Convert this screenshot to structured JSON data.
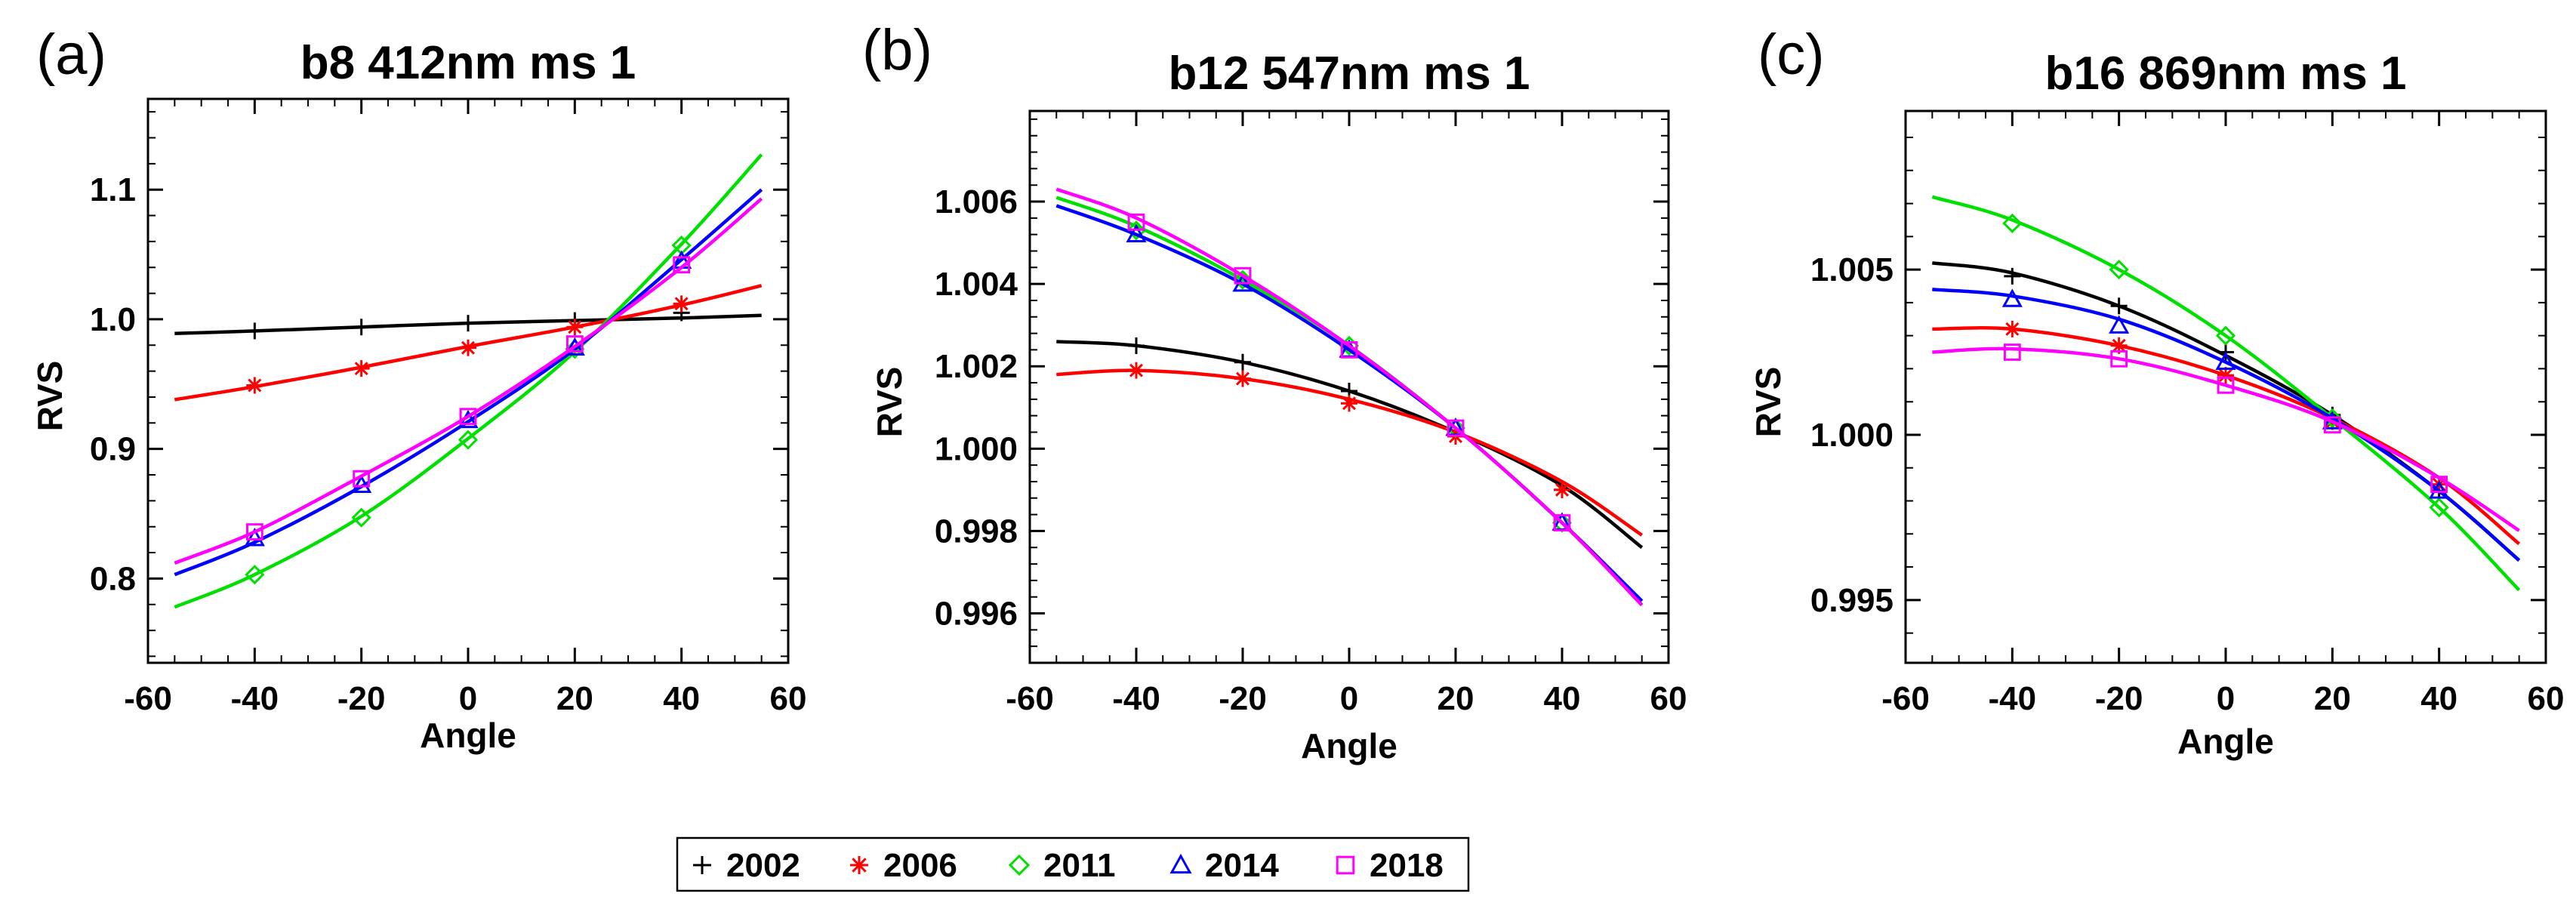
{
  "figure": {
    "legend": [
      {
        "name": "2002",
        "marker": "plus",
        "color": "#000000"
      },
      {
        "name": "2006",
        "marker": "asterisk",
        "color": "#ff0000"
      },
      {
        "name": "2011",
        "marker": "diamond",
        "color": "#00e000"
      },
      {
        "name": "2014",
        "marker": "triangle",
        "color": "#0000ff"
      },
      {
        "name": "2018",
        "marker": "square",
        "color": "#ff00ff"
      }
    ]
  },
  "chart_data": [
    {
      "type": "line",
      "panel_label": "(a)",
      "title": "b8  412nm ms 1",
      "xlabel": "Angle",
      "ylabel": "RVS",
      "xlim": [
        -60,
        60
      ],
      "ylim": [
        0.735,
        1.17
      ],
      "xticks": [
        -60,
        -40,
        -20,
        0,
        20,
        40,
        60
      ],
      "xtick_labels": [
        "-60",
        "-40",
        "-20",
        "0",
        "20",
        "40",
        "60"
      ],
      "yticks": [
        0.8,
        0.9,
        1.0,
        1.1
      ],
      "ytick_labels": [
        "0.8",
        "0.9",
        "1.0",
        "1.1"
      ],
      "curve_x": [
        -55,
        -40,
        -20,
        0,
        20,
        40,
        55
      ],
      "marker_x": [
        -40,
        -20,
        0,
        20,
        40
      ],
      "series": [
        {
          "name": "2002",
          "curve_y": [
            0.989,
            0.991,
            0.994,
            0.997,
            0.999,
            1.001,
            1.003
          ],
          "marker_y": [
            0.991,
            0.994,
            0.997,
            0.999,
            1.005
          ]
        },
        {
          "name": "2006",
          "curve_y": [
            0.938,
            0.948,
            0.963,
            0.979,
            0.994,
            1.011,
            1.026
          ],
          "marker_y": [
            0.949,
            0.962,
            0.978,
            0.994,
            1.012
          ]
        },
        {
          "name": "2011",
          "curve_y": [
            0.778,
            0.803,
            0.848,
            0.908,
            0.975,
            1.058,
            1.127
          ],
          "marker_y": [
            0.803,
            0.847,
            0.907,
            0.977,
            1.057
          ]
        },
        {
          "name": "2014",
          "curve_y": [
            0.803,
            0.828,
            0.871,
            0.921,
            0.977,
            1.046,
            1.1
          ],
          "marker_y": [
            0.831,
            0.872,
            0.922,
            0.978,
            1.045
          ]
        },
        {
          "name": "2018",
          "curve_y": [
            0.812,
            0.836,
            0.879,
            0.925,
            0.979,
            1.04,
            1.093
          ],
          "marker_y": [
            0.836,
            0.877,
            0.925,
            0.981,
            1.042
          ]
        }
      ]
    },
    {
      "type": "line",
      "panel_label": "(b)",
      "title": "b12  547nm ms 1",
      "xlabel": "Angle",
      "ylabel": "RVS",
      "xlim": [
        -60,
        60
      ],
      "ylim": [
        0.9948,
        1.0082
      ],
      "xticks": [
        -60,
        -40,
        -20,
        0,
        20,
        40,
        60
      ],
      "xtick_labels": [
        "-60",
        "-40",
        "-20",
        "0",
        "20",
        "40",
        "60"
      ],
      "yticks": [
        0.996,
        0.998,
        1.0,
        1.002,
        1.004,
        1.006
      ],
      "ytick_labels": [
        "0.996",
        "0.998",
        "1.000",
        "1.002",
        "1.004",
        "1.006"
      ],
      "curve_x": [
        -55,
        -40,
        -20,
        0,
        20,
        40,
        55
      ],
      "marker_x": [
        -40,
        -20,
        0,
        20,
        40
      ],
      "series": [
        {
          "name": "2002",
          "curve_y": [
            1.0026,
            1.0025,
            1.0021,
            1.0014,
            1.0004,
            0.9991,
            0.9976
          ],
          "marker_y": [
            1.0025,
            1.0021,
            1.0014,
            1.0003,
            0.999
          ]
        },
        {
          "name": "2006",
          "curve_y": [
            1.0018,
            1.0019,
            1.0017,
            1.0012,
            1.0004,
            0.9992,
            0.9979
          ],
          "marker_y": [
            1.0019,
            1.0017,
            1.0011,
            1.0003,
            0.999
          ]
        },
        {
          "name": "2011",
          "curve_y": [
            1.0061,
            1.0054,
            1.0041,
            1.0025,
            1.0005,
            0.9982,
            0.9962
          ],
          "marker_y": [
            1.0053,
            1.0041,
            1.0025,
            1.0005,
            0.9982
          ]
        },
        {
          "name": "2014",
          "curve_y": [
            1.0059,
            1.0052,
            1.004,
            1.0024,
            1.0005,
            0.9982,
            0.9963
          ],
          "marker_y": [
            1.0052,
            1.004,
            1.0024,
            1.0005,
            0.9982
          ]
        },
        {
          "name": "2018",
          "curve_y": [
            1.0063,
            1.0056,
            1.0042,
            1.0025,
            1.0005,
            0.9982,
            0.9962
          ],
          "marker_y": [
            1.0055,
            1.0042,
            1.0024,
            1.0005,
            0.9982
          ]
        }
      ]
    },
    {
      "type": "line",
      "panel_label": "(c)",
      "title": "b16  869nm ms 1",
      "xlabel": "Angle",
      "ylabel": "RVS",
      "xlim": [
        -60,
        60
      ],
      "ylim": [
        0.9931,
        1.0098
      ],
      "xticks": [
        -60,
        -40,
        -20,
        0,
        20,
        40,
        60
      ],
      "xtick_labels": [
        "-60",
        "-40",
        "-20",
        "0",
        "20",
        "40",
        "60"
      ],
      "yticks": [
        0.995,
        1.0,
        1.005
      ],
      "ytick_labels": [
        "0.995",
        "1.000",
        "1.005"
      ],
      "curve_x": [
        -55,
        -40,
        -20,
        0,
        20,
        40,
        55
      ],
      "marker_x": [
        -40,
        -20,
        0,
        20,
        40
      ],
      "series": [
        {
          "name": "2002",
          "curve_y": [
            1.0052,
            1.0049,
            1.0039,
            1.0024,
            1.0006,
            0.9983,
            0.9962
          ],
          "marker_y": [
            1.0048,
            1.0039,
            1.0025,
            1.0006,
            0.9983
          ]
        },
        {
          "name": "2006",
          "curve_y": [
            1.0032,
            1.0032,
            1.0027,
            1.0018,
            1.0005,
            0.9987,
            0.9967
          ],
          "marker_y": [
            1.0032,
            1.0027,
            1.0018,
            1.0004,
            0.9985
          ]
        },
        {
          "name": "2011",
          "curve_y": [
            1.0072,
            1.0065,
            1.005,
            1.003,
            1.0005,
            0.9978,
            0.9953
          ],
          "marker_y": [
            1.0064,
            1.005,
            1.003,
            1.0005,
            0.9978
          ]
        },
        {
          "name": "2014",
          "curve_y": [
            1.0044,
            1.0042,
            1.0035,
            1.0022,
            1.0005,
            0.9983,
            0.9962
          ],
          "marker_y": [
            1.0041,
            1.0033,
            1.0022,
            1.0004,
            0.9983
          ]
        },
        {
          "name": "2018",
          "curve_y": [
            1.0025,
            1.0026,
            1.0023,
            1.0015,
            1.0004,
            0.9987,
            0.9971
          ],
          "marker_y": [
            1.0025,
            1.0023,
            1.0015,
            1.0003,
            0.9985
          ]
        }
      ]
    }
  ]
}
